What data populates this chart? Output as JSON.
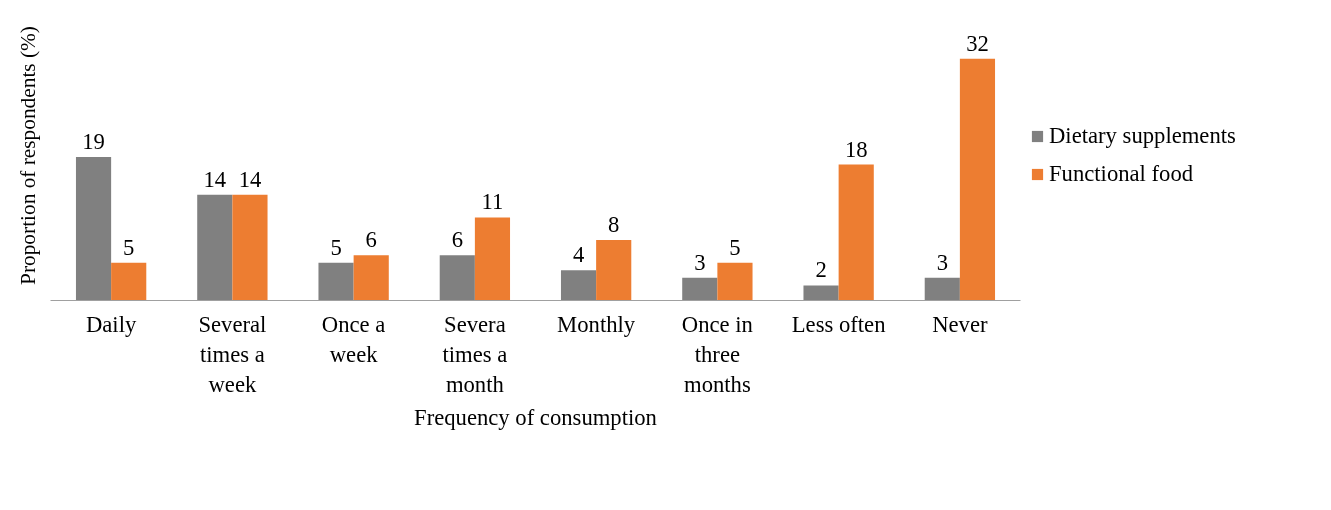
{
  "chart_data": {
    "type": "bar",
    "xlabel": "Frequency of consumption",
    "ylabel": "Proportion of respondents (%)",
    "categories": [
      "Daily",
      "Several\ntimes a\nweek",
      "Once a\nweek",
      "Severa\ntimes a\nmonth",
      "Monthly",
      "Once in\nthree\nmonths",
      "Less often",
      "Never"
    ],
    "series": [
      {
        "name": "Dietary supplements",
        "color": "#808080",
        "values": [
          19,
          14,
          5,
          6,
          4,
          3,
          2,
          3
        ]
      },
      {
        "name": "Functional food",
        "color": "#ed7d31",
        "values": [
          5,
          14,
          6,
          11,
          8,
          5,
          18,
          32
        ]
      }
    ],
    "data_labels": true,
    "legend": "right",
    "grid": false
  }
}
